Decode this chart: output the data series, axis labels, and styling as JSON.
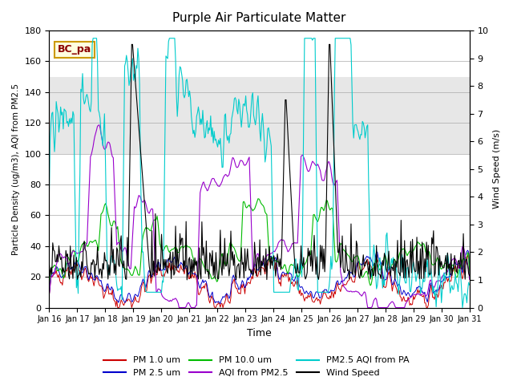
{
  "title": "Purple Air Particulate Matter",
  "xlabel": "Time",
  "ylabel_left": "Particle Density (ug/m3), AQI from PM2.5",
  "ylabel_right": "Wind Speed (m/s)",
  "annotation_text": "BC_pa",
  "ylim_left": [
    0,
    180
  ],
  "ylim_right": [
    0.0,
    10.0
  ],
  "yticks_left": [
    0,
    20,
    40,
    60,
    80,
    100,
    120,
    140,
    160,
    180
  ],
  "yticks_right": [
    0.0,
    1.0,
    2.0,
    3.0,
    4.0,
    5.0,
    6.0,
    7.0,
    8.0,
    9.0,
    10.0
  ],
  "xtick_labels": [
    "Jan 16",
    "Jan 17",
    "Jan 18",
    "Jan 19",
    "Jan 20",
    "Jan 21",
    "Jan 22",
    "Jan 23",
    "Jan 24",
    "Jan 25",
    "Jan 26",
    "Jan 27",
    "Jan 28",
    "Jan 29",
    "Jan 30",
    "Jan 31"
  ],
  "n_points": 480,
  "colors": {
    "pm1": "#cc0000",
    "pm25": "#0000cc",
    "pm10": "#00bb00",
    "aqi_pm25": "#9900cc",
    "aqi_pa": "#00cccc",
    "wind": "#000000"
  },
  "legend_labels": [
    "PM 1.0 um",
    "PM 2.5 um",
    "PM 10.0 um",
    "AQI from PM2.5",
    "PM2.5 AQI from PA",
    "Wind Speed"
  ],
  "shaded_band": [
    100,
    150
  ],
  "background_color": "#ffffff",
  "grid_color": "#aaaaaa"
}
